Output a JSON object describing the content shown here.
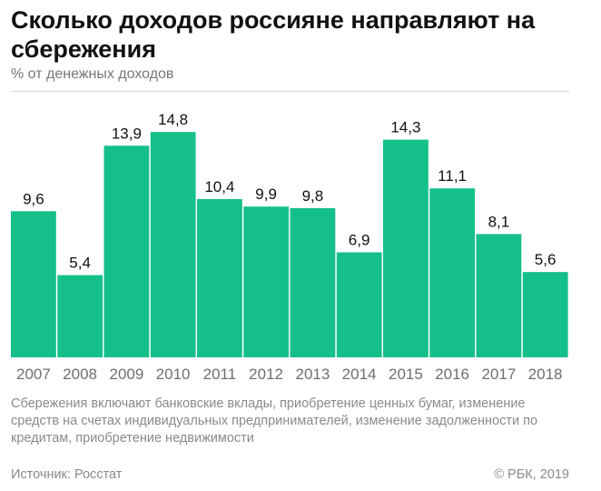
{
  "header": {
    "title": "Сколько доходов россияне направляют на сбережения",
    "subtitle": "% от денежных доходов"
  },
  "footer": {
    "note": "Сбережения включают банковские вклады, приобретение ценных бумаг, изменение средств на счетах индивидуальных предпринимателей, изменение задолженности по кредитам, приобретение недвижимости",
    "source": "Источник: Росстат",
    "copyright": "© РБК, 2019"
  },
  "colors": {
    "bar": "#15BF8A",
    "text": "#111111",
    "muted": "#8a8a8a"
  },
  "chart_data": {
    "type": "bar",
    "categories": [
      "2007",
      "2008",
      "2009",
      "2010",
      "2011",
      "2012",
      "2013",
      "2014",
      "2015",
      "2016",
      "2017",
      "2018"
    ],
    "values": [
      9.6,
      5.4,
      13.9,
      14.8,
      10.4,
      9.9,
      9.8,
      6.9,
      14.3,
      11.1,
      8.1,
      5.6
    ],
    "labels": [
      "9,6",
      "5,4",
      "13,9",
      "14,8",
      "10,4",
      "9,9",
      "9,8",
      "6,9",
      "14,3",
      "11,1",
      "8,1",
      "5,6"
    ],
    "title": "Сколько доходов россияне направляют на сбережения",
    "ylabel": "% от денежных доходов",
    "ylim": [
      0,
      17.5
    ],
    "grid": false,
    "legend": "none"
  }
}
